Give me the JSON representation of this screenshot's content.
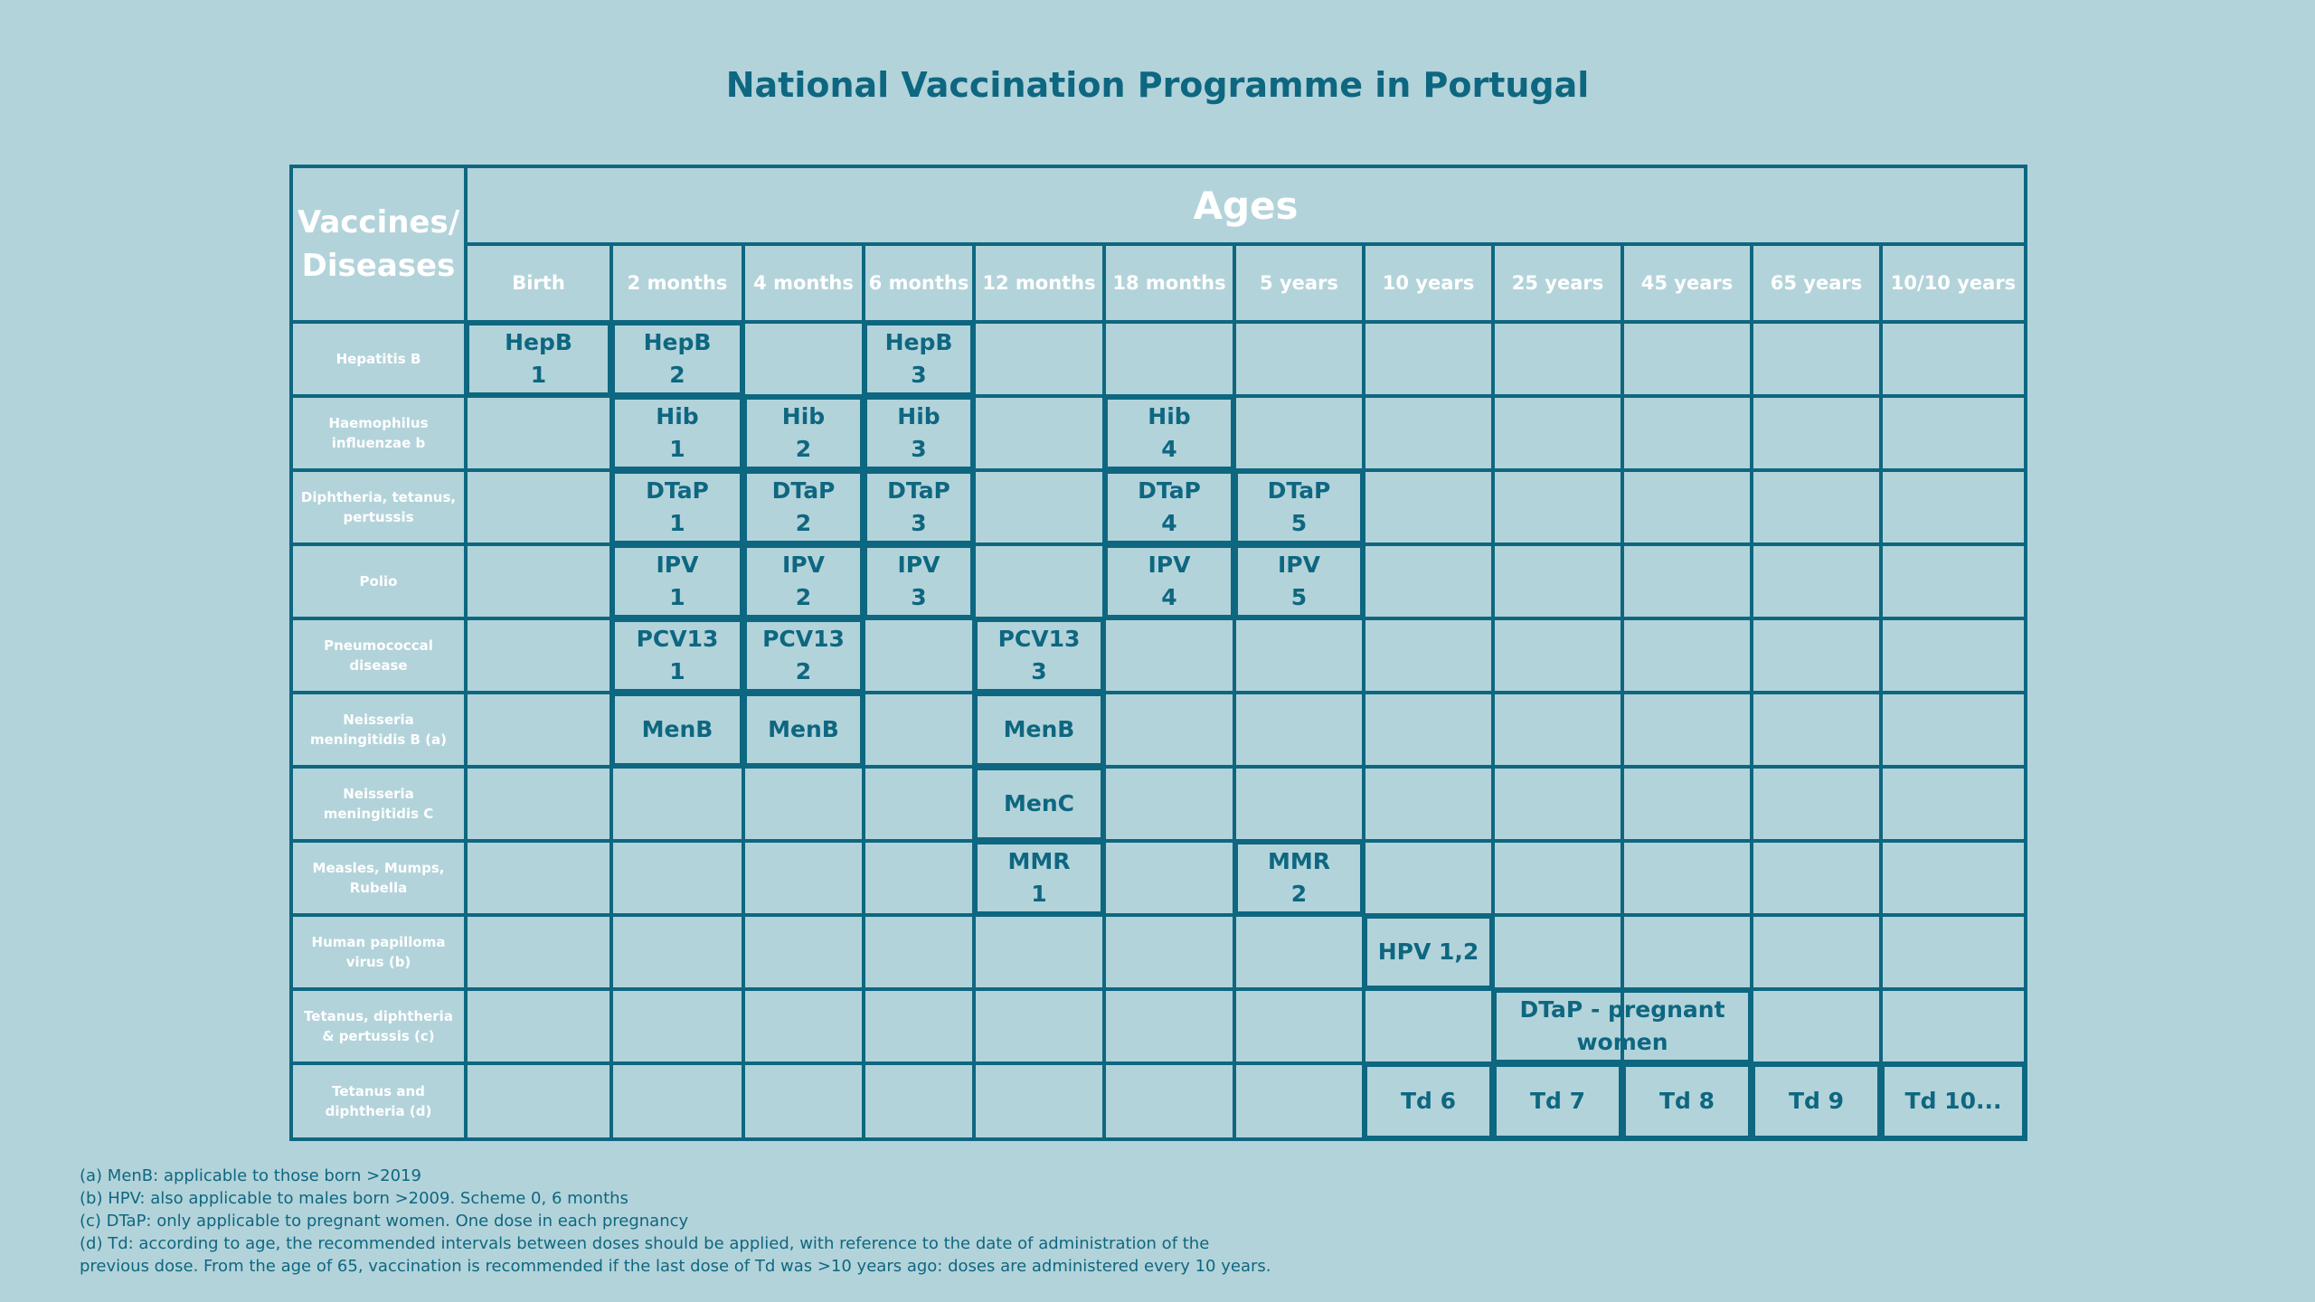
{
  "title": "National Vaccination Programme in Portugal",
  "colors": {
    "background": "#b3d3da",
    "accent": "#0e6780",
    "header_text": "#ffffff"
  },
  "table": {
    "corner_label": "Vaccines/\nDiseases",
    "ages_label": "Ages",
    "ages": [
      "Birth",
      "2 months",
      "4 months",
      "6 months",
      "12 months",
      "18 months",
      "5 years",
      "10 years",
      "25 years",
      "45 years",
      "65 years",
      "10/10 years"
    ],
    "diseases": [
      "Hepatitis B",
      "Haemophilus influenzae b",
      "Diphtheria, tetanus, pertussis",
      "Polio",
      "Pneumococcal disease",
      "Neisseria meningitidis B (a)",
      "Neisseria meningitidis C",
      "Measles, Mumps, Rubella",
      "Human papilloma virus (b)",
      "Tetanus, diphtheria & pertussis (c)",
      "Tetanus and diphtheria (d)"
    ],
    "entries": [
      {
        "row": 0,
        "col": 0,
        "span": 1,
        "text": "HepB\n1"
      },
      {
        "row": 0,
        "col": 1,
        "span": 1,
        "text": "HepB\n2"
      },
      {
        "row": 0,
        "col": 3,
        "span": 1,
        "text": "HepB\n3"
      },
      {
        "row": 1,
        "col": 1,
        "span": 1,
        "text": "Hib\n1"
      },
      {
        "row": 1,
        "col": 2,
        "span": 1,
        "text": "Hib\n2"
      },
      {
        "row": 1,
        "col": 3,
        "span": 1,
        "text": "Hib\n3"
      },
      {
        "row": 1,
        "col": 5,
        "span": 1,
        "text": "Hib\n4"
      },
      {
        "row": 2,
        "col": 1,
        "span": 1,
        "text": "DTaP\n1"
      },
      {
        "row": 2,
        "col": 2,
        "span": 1,
        "text": "DTaP\n2"
      },
      {
        "row": 2,
        "col": 3,
        "span": 1,
        "text": "DTaP\n3"
      },
      {
        "row": 2,
        "col": 5,
        "span": 1,
        "text": "DTaP\n4"
      },
      {
        "row": 2,
        "col": 6,
        "span": 1,
        "text": "DTaP\n5"
      },
      {
        "row": 3,
        "col": 1,
        "span": 1,
        "text": "IPV\n1"
      },
      {
        "row": 3,
        "col": 2,
        "span": 1,
        "text": "IPV\n2"
      },
      {
        "row": 3,
        "col": 3,
        "span": 1,
        "text": "IPV\n3"
      },
      {
        "row": 3,
        "col": 5,
        "span": 1,
        "text": "IPV\n4"
      },
      {
        "row": 3,
        "col": 6,
        "span": 1,
        "text": "IPV\n5"
      },
      {
        "row": 4,
        "col": 1,
        "span": 1,
        "text": "PCV13\n1"
      },
      {
        "row": 4,
        "col": 2,
        "span": 1,
        "text": "PCV13\n2"
      },
      {
        "row": 4,
        "col": 4,
        "span": 1,
        "text": "PCV13\n3"
      },
      {
        "row": 5,
        "col": 1,
        "span": 1,
        "text": "MenB"
      },
      {
        "row": 5,
        "col": 2,
        "span": 1,
        "text": "MenB"
      },
      {
        "row": 5,
        "col": 4,
        "span": 1,
        "text": "MenB"
      },
      {
        "row": 6,
        "col": 4,
        "span": 1,
        "text": "MenC"
      },
      {
        "row": 7,
        "col": 4,
        "span": 1,
        "text": "MMR\n1"
      },
      {
        "row": 7,
        "col": 6,
        "span": 1,
        "text": "MMR\n2"
      },
      {
        "row": 8,
        "col": 7,
        "span": 1,
        "text": "HPV 1,2"
      },
      {
        "row": 9,
        "col": 8,
        "span": 2,
        "text": "DTaP - pregnant\nwomen"
      },
      {
        "row": 10,
        "col": 7,
        "span": 1,
        "text": "Td 6"
      },
      {
        "row": 10,
        "col": 8,
        "span": 1,
        "text": "Td 7"
      },
      {
        "row": 10,
        "col": 9,
        "span": 1,
        "text": "Td 8"
      },
      {
        "row": 10,
        "col": 10,
        "span": 1,
        "text": "Td 9"
      },
      {
        "row": 10,
        "col": 11,
        "span": 1,
        "text": "Td 10..."
      }
    ]
  },
  "notes": [
    "(a) MenB: applicable to those born >2019",
    "(b) HPV: also applicable to males born >2009. Scheme 0, 6 months",
    "(c) DTaP: only applicable to pregnant women. One dose in each pregnancy",
    "(d) Td: according to age, the recommended intervals between doses should be applied, with reference to the date of administration of the",
    "previous dose. From the age of 65, vaccination is recommended if the last dose of Td was >10 years ago: doses are administered every 10 years."
  ]
}
